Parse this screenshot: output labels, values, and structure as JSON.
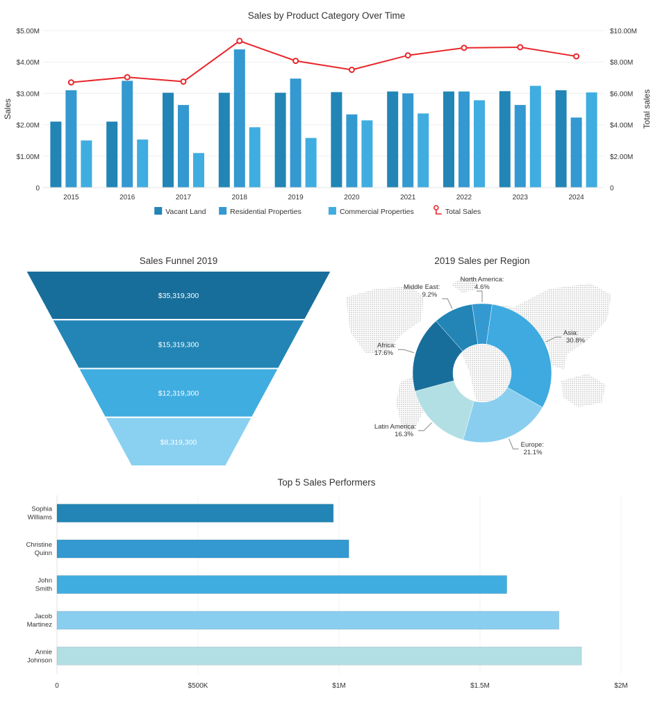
{
  "colors": {
    "vacant": "#2285B5",
    "residential": "#3399D0",
    "commercial": "#40ADE0",
    "total": "#E8262A",
    "funnel": [
      "#186E9B",
      "#2285B5",
      "#40ADE0",
      "#8AD0F0"
    ],
    "donut": {
      "Asia": "#3EAAE0",
      "Europe": "#8ACEEF",
      "Latin America": "#B2DFE4",
      "Africa": "#186E9B",
      "Middle East": "#2285B5",
      "North America": "#3399D0"
    },
    "performers": [
      "#2285B5",
      "#3399D0",
      "#40ADE0",
      "#8ACEEF",
      "#B2DFE4"
    ],
    "map": "#dcdcdc"
  },
  "chart_data": [
    {
      "type": "bar",
      "title": "Sales by Product Category Over Time",
      "ylabel": "Sales",
      "y2label": "Total sales",
      "categories": [
        "2015",
        "2016",
        "2017",
        "2018",
        "2019",
        "2020",
        "2021",
        "2022",
        "2023",
        "2024"
      ],
      "series": [
        {
          "name": "Vacant Land",
          "kind": "bar",
          "values": [
            2.1,
            2.1,
            3.02,
            3.02,
            3.02,
            3.04,
            3.06,
            3.06,
            3.07,
            3.1
          ]
        },
        {
          "name": "Residential Properties",
          "kind": "bar",
          "values": [
            3.1,
            3.4,
            2.63,
            4.4,
            3.47,
            2.33,
            3.0,
            3.06,
            2.63,
            2.23
          ]
        },
        {
          "name": "Commercial Properties",
          "kind": "bar",
          "values": [
            1.5,
            1.53,
            1.1,
            1.92,
            1.58,
            2.14,
            2.36,
            2.78,
            3.24,
            3.03
          ]
        },
        {
          "name": "Total Sales",
          "kind": "line",
          "axis": "right",
          "values": [
            6.7,
            7.03,
            6.75,
            9.34,
            8.07,
            7.5,
            8.42,
            8.9,
            8.94,
            8.36
          ]
        }
      ],
      "ylim": [
        0,
        5
      ],
      "y2lim": [
        0,
        10
      ],
      "yticks": [
        "0",
        "$1.00M",
        "$2.00M",
        "$3.00M",
        "$4.00M",
        "$5.00M"
      ],
      "y2ticks": [
        "0",
        "$2.00M",
        "$4.00M",
        "$6.00M",
        "$8.00M",
        "$10.00M"
      ],
      "legend": "bottom-center",
      "grid": true
    },
    {
      "type": "funnel",
      "title": "Sales Funnel 2019",
      "values": [
        35319300,
        15319300,
        12319300,
        8319300
      ],
      "labels": [
        "$35,319,300",
        "$15,319,300",
        "$12,319,300",
        "$8,319,300"
      ]
    },
    {
      "type": "pie",
      "subtype": "donut",
      "title": "2019 Sales per Region",
      "slices": [
        {
          "name": "Asia",
          "value": 30.8,
          "label": "30.8%"
        },
        {
          "name": "Europe",
          "value": 21.1,
          "label": "21.1%"
        },
        {
          "name": "Latin America",
          "value": 16.3,
          "label": "16.3%"
        },
        {
          "name": "Africa",
          "value": 17.6,
          "label": "17.6%"
        },
        {
          "name": "Middle East",
          "value": 9.2,
          "label": "9.2%"
        },
        {
          "name": "North America",
          "value": 4.6,
          "label": "4.6%"
        }
      ]
    },
    {
      "type": "bar",
      "orientation": "horizontal",
      "title": "Top 5 Sales Performers",
      "categories": [
        [
          "Sophia",
          "Williams"
        ],
        [
          "Christine",
          "Quinn"
        ],
        [
          "John",
          "Smith"
        ],
        [
          "Jacob",
          "Martinez"
        ],
        [
          "Annie",
          "Johnson"
        ]
      ],
      "values": [
        980000,
        1035000,
        1595000,
        1780000,
        1860000
      ],
      "xlim": [
        0,
        2000000
      ],
      "xticks": [
        "0",
        "$500K",
        "$1M",
        "$1.5M",
        "$2M"
      ],
      "grid": true
    }
  ]
}
